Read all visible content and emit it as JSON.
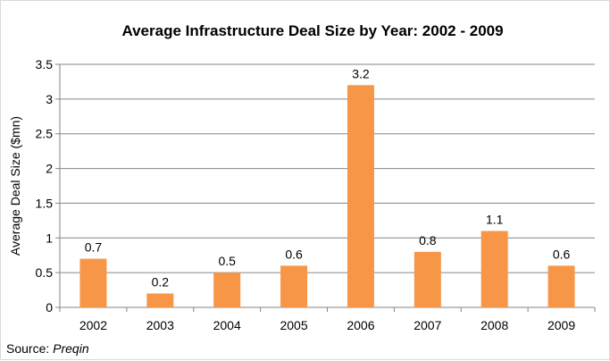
{
  "chart_data": {
    "type": "bar",
    "title": "Average Infrastructure Deal Size by Year: 2002 - 2009",
    "xlabel": "",
    "ylabel": "Average Deal Size ($mn)",
    "categories": [
      "2002",
      "2003",
      "2004",
      "2005",
      "2006",
      "2007",
      "2008",
      "2009"
    ],
    "values": [
      0.7,
      0.2,
      0.5,
      0.6,
      3.2,
      0.8,
      1.1,
      0.6
    ],
    "data_labels": [
      "0.7",
      "0.2",
      "0.5",
      "0.6",
      "3.2",
      "0.8",
      "1.1",
      "0.6"
    ],
    "ylim": [
      0,
      3.5
    ],
    "yticks": [
      0,
      0.5,
      1,
      1.5,
      2,
      2.5,
      3,
      3.5
    ],
    "ytick_labels": [
      "0",
      "0.5",
      "1",
      "1.5",
      "2",
      "2.5",
      "3",
      "3.5"
    ],
    "grid": true,
    "legend": "none",
    "bar_color": "#f79646",
    "grid_color": "#868686"
  },
  "source": {
    "prefix": "Source: ",
    "name": "Preqin"
  }
}
